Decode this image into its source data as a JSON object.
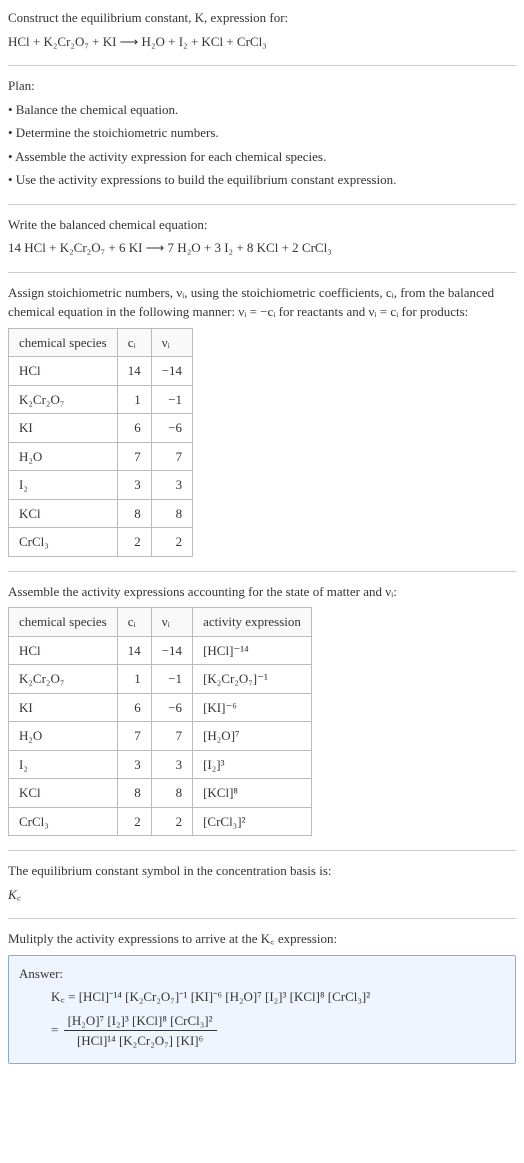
{
  "intro": {
    "line1": "Construct the equilibrium constant, K, expression for:",
    "line2": "HCl + K₂Cr₂O₇ + KI  ⟶  H₂O + I₂ + KCl + CrCl₃"
  },
  "plan": {
    "heading": "Plan:",
    "bullets": [
      "• Balance the chemical equation.",
      "• Determine the stoichiometric numbers.",
      "• Assemble the activity expression for each chemical species.",
      "• Use the activity expressions to build the equilibrium constant expression."
    ]
  },
  "balanced": {
    "heading": "Write the balanced chemical equation:",
    "eq": "14 HCl + K₂Cr₂O₇ + 6 KI  ⟶  7 H₂O + 3 I₂ + 8 KCl + 2 CrCl₃"
  },
  "stoich": {
    "heading": "Assign stoichiometric numbers, νᵢ, using the stoichiometric coefficients, cᵢ, from the balanced chemical equation in the following manner: νᵢ = −cᵢ for reactants and νᵢ = cᵢ for products:",
    "cols": [
      "chemical species",
      "cᵢ",
      "νᵢ"
    ],
    "rows": [
      [
        "HCl",
        "14",
        "−14"
      ],
      [
        "K₂Cr₂O₇",
        "1",
        "−1"
      ],
      [
        "KI",
        "6",
        "−6"
      ],
      [
        "H₂O",
        "7",
        "7"
      ],
      [
        "I₂",
        "3",
        "3"
      ],
      [
        "KCl",
        "8",
        "8"
      ],
      [
        "CrCl₃",
        "2",
        "2"
      ]
    ]
  },
  "activity": {
    "heading": "Assemble the activity expressions accounting for the state of matter and νᵢ:",
    "cols": [
      "chemical species",
      "cᵢ",
      "νᵢ",
      "activity expression"
    ],
    "rows": [
      [
        "HCl",
        "14",
        "−14",
        "[HCl]⁻¹⁴"
      ],
      [
        "K₂Cr₂O₇",
        "1",
        "−1",
        "[K₂Cr₂O₇]⁻¹"
      ],
      [
        "KI",
        "6",
        "−6",
        "[KI]⁻⁶"
      ],
      [
        "H₂O",
        "7",
        "7",
        "[H₂O]⁷"
      ],
      [
        "I₂",
        "3",
        "3",
        "[I₂]³"
      ],
      [
        "KCl",
        "8",
        "8",
        "[KCl]⁸"
      ],
      [
        "CrCl₃",
        "2",
        "2",
        "[CrCl₃]²"
      ]
    ]
  },
  "kc_symbol": {
    "heading": "The equilibrium constant symbol in the concentration basis is:",
    "symbol": "K꜀"
  },
  "multiply": {
    "heading": "Mulitply the activity expressions to arrive at the K꜀ expression:"
  },
  "answer": {
    "label": "Answer:",
    "line1": "K꜀ = [HCl]⁻¹⁴ [K₂Cr₂O₇]⁻¹ [KI]⁻⁶ [H₂O]⁷ [I₂]³ [KCl]⁸ [CrCl₃]²",
    "frac_num": "[H₂O]⁷ [I₂]³ [KCl]⁸ [CrCl₃]²",
    "frac_den": "[HCl]¹⁴ [K₂Cr₂O₇] [KI]⁶",
    "eq_prefix": "= "
  },
  "colors": {
    "border": "#bbbbbb",
    "answer_border": "#88aadd",
    "answer_bg": "#eef5ff",
    "text": "#333333"
  }
}
